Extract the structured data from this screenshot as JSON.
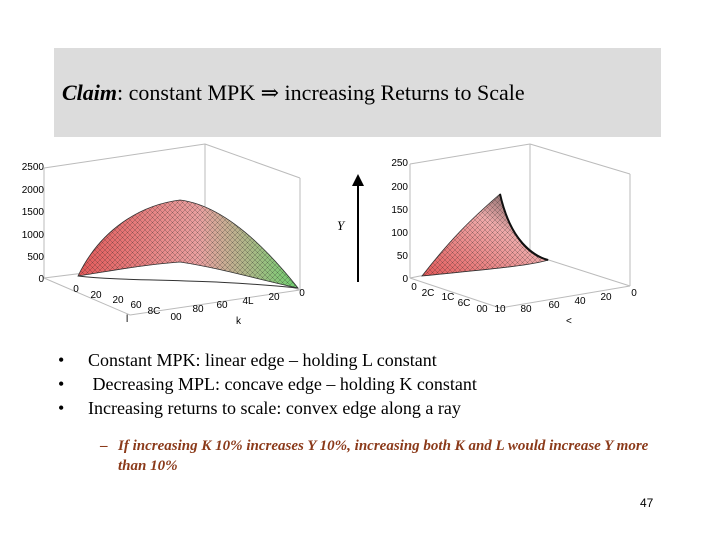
{
  "title": {
    "claim": "Claim",
    "rest": ": constant MPK ⇒ increasing Returns to Scale"
  },
  "plots": {
    "left": {
      "z_ticks": [
        "2500",
        "2000",
        "1500",
        "1000",
        "500",
        "0"
      ],
      "l_ticks": [
        "0",
        "20",
        "20",
        "60",
        "8C",
        "00"
      ],
      "k_ticks": [
        "80",
        "60",
        "4L",
        "20",
        "0"
      ],
      "l_label": "l",
      "k_label": "k"
    },
    "arrow_label": "Y",
    "right": {
      "z_ticks": [
        "250",
        "200",
        "150",
        "100",
        "50",
        "0"
      ],
      "l_ticks": [
        "0",
        "2C",
        "1C",
        "6C",
        "00",
        "10"
      ],
      "k_ticks": [
        "80",
        "60",
        "40",
        "20",
        "0"
      ],
      "k_label": "<"
    },
    "colors": {
      "low": "#e35a5a",
      "high": "#5fbf5f"
    }
  },
  "bullets": [
    {
      "marker": "•",
      "text": "Constant MPK: linear edge – holding L constant"
    },
    {
      "marker": "•",
      "text": " Decreasing MPL: concave edge – holding K constant"
    },
    {
      "marker": "•",
      "text": "Increasing returns to scale: convex edge along a ray"
    }
  ],
  "sub_bullet": {
    "marker": "–",
    "text": "If increasing K 10% increases Y 10%, increasing both K and L would increase Y more than 10%"
  },
  "page_number": "47"
}
